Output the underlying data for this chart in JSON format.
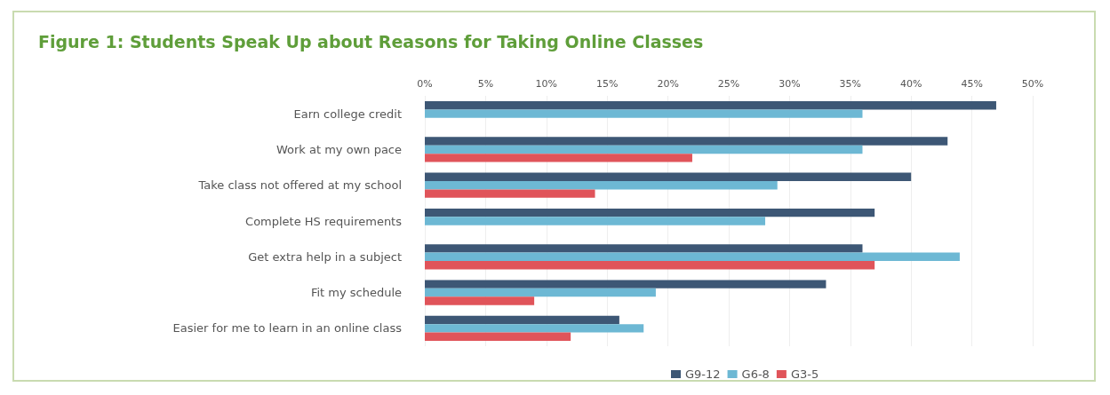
{
  "chart_data": {
    "type": "bar",
    "orientation": "horizontal",
    "title": "Figure 1: Students Speak Up about Reasons for Taking Online Classes",
    "categories": [
      "Earn college credit",
      "Work at my own pace",
      "Take class not offered at my school",
      "Complete HS requirements",
      "Get extra help in a subject",
      "Fit my schedule",
      "Easier for me to learn in an online class"
    ],
    "series": [
      {
        "name": "G9-12",
        "color": "#3d5775",
        "values": [
          47,
          43,
          40,
          37,
          36,
          33,
          16
        ]
      },
      {
        "name": "G6-8",
        "color": "#6db8d4",
        "values": [
          36,
          36,
          29,
          28,
          44,
          19,
          18
        ]
      },
      {
        "name": "G3-5",
        "color": "#e0545a",
        "values": [
          null,
          22,
          14,
          null,
          37,
          9,
          12
        ]
      }
    ],
    "xlim": [
      0,
      50
    ],
    "xticks": [
      {
        "value": 0,
        "label": "0%"
      },
      {
        "value": 5,
        "label": "5%"
      },
      {
        "value": 10,
        "label": "10%"
      },
      {
        "value": 15,
        "label": "15%"
      },
      {
        "value": 20,
        "label": "20%"
      },
      {
        "value": 25,
        "label": "25%"
      },
      {
        "value": 30,
        "label": "30%"
      },
      {
        "value": 35,
        "label": "35%"
      },
      {
        "value": 40,
        "label": "40%"
      },
      {
        "value": 45,
        "label": "45%"
      },
      {
        "value": 50,
        "label": "50%"
      }
    ],
    "grid": "x",
    "legend": "bottom"
  }
}
